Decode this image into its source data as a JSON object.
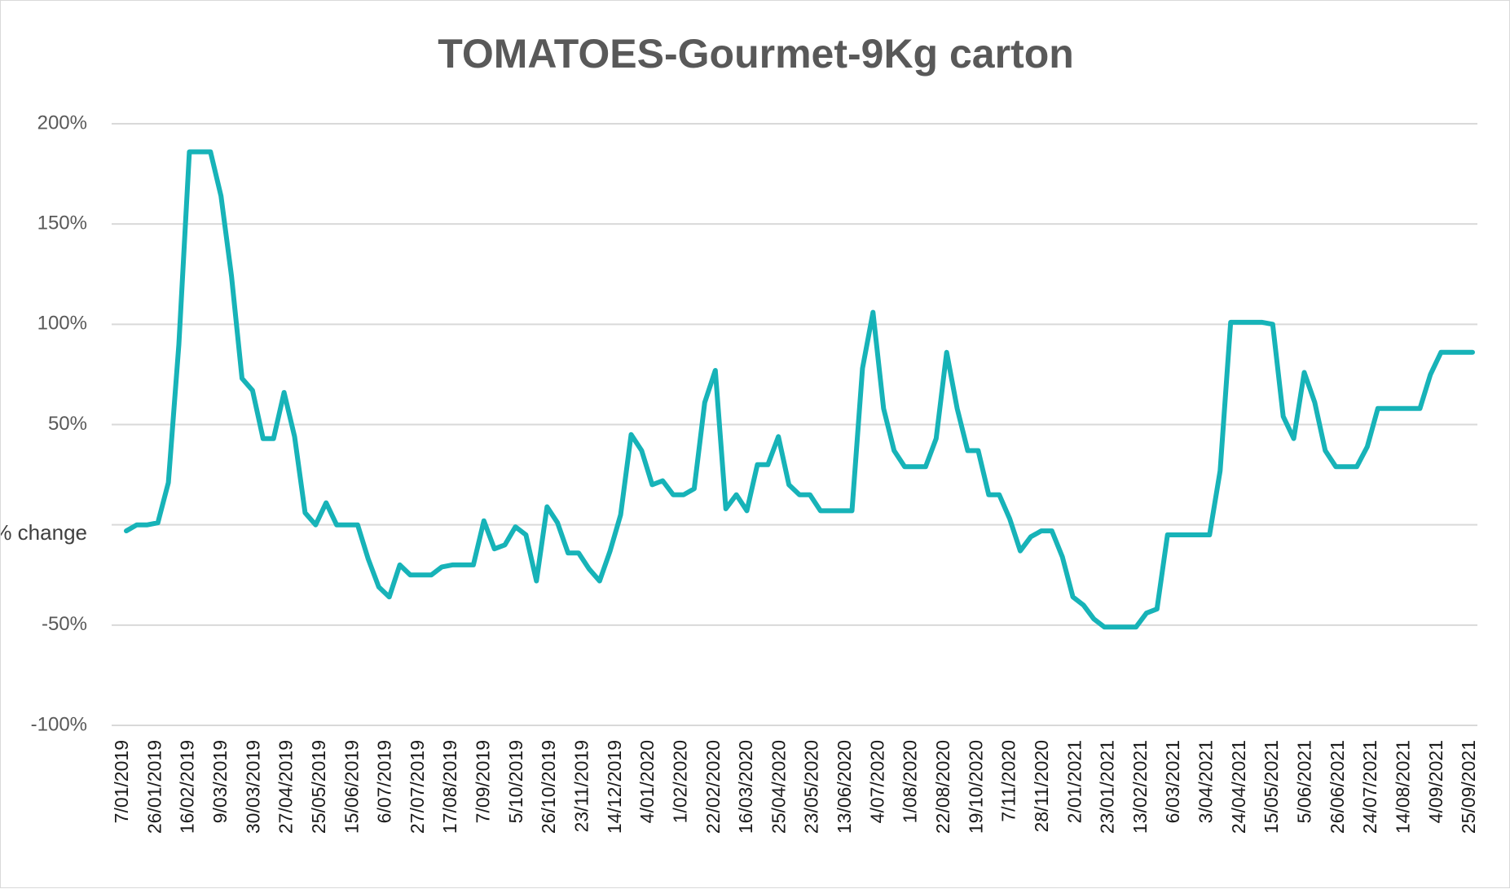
{
  "chart_data": {
    "type": "line",
    "title": "TOMATOES-Gourmet-9Kg carton",
    "ylabel": "% change",
    "xlabel": "",
    "ylim": [
      -100,
      200
    ],
    "yticks": [
      "200%",
      "150%",
      "100%",
      "50%",
      "",
      "-50%",
      "-100%"
    ],
    "ytick_values": [
      200,
      150,
      100,
      50,
      0,
      -50,
      -100
    ],
    "grid": true,
    "legend": "none",
    "line_color": "#17b3b8",
    "x_tick_labels": [
      "7/01/2019",
      "26/01/2019",
      "16/02/2019",
      "9/03/2019",
      "30/03/2019",
      "27/04/2019",
      "25/05/2019",
      "15/06/2019",
      "6/07/2019",
      "27/07/2019",
      "17/08/2019",
      "7/09/2019",
      "5/10/2019",
      "26/10/2019",
      "23/11/2019",
      "14/12/2019",
      "4/01/2020",
      "1/02/2020",
      "22/02/2020",
      "16/03/2020",
      "25/04/2020",
      "23/05/2020",
      "13/06/2020",
      "4/07/2020",
      "1/08/2020",
      "22/08/2020",
      "19/10/2020",
      "7/11/2020",
      "28/11/2020",
      "2/01/2021",
      "23/01/2021",
      "13/02/2021",
      "6/03/2021",
      "3/04/2021",
      "24/04/2021",
      "15/05/2021",
      "5/06/2021",
      "26/06/2021",
      "24/07/2021",
      "14/08/2021",
      "4/09/2021",
      "25/09/2021"
    ],
    "series": [
      {
        "values": [
          -3,
          0,
          0,
          1,
          21,
          90,
          186,
          186,
          186,
          164,
          124,
          73,
          67,
          43,
          43,
          66,
          44,
          6,
          0,
          11,
          0,
          0,
          0,
          -17,
          -31,
          -36,
          -20,
          -25,
          -25,
          -25,
          -21,
          -20,
          -20,
          -20,
          2,
          -12,
          -10,
          -1,
          -5,
          -28,
          9,
          1,
          -14,
          -14,
          -22,
          -28,
          -13,
          5,
          45,
          37,
          20,
          22,
          15,
          15,
          18,
          61,
          77,
          8,
          15,
          7,
          30,
          30,
          44,
          20,
          15,
          15,
          7,
          7,
          7,
          7,
          78,
          106,
          58,
          37,
          29,
          29,
          29,
          43,
          86,
          58,
          37,
          37,
          15,
          15,
          3,
          -13,
          -6,
          -3,
          -3,
          -16,
          -36,
          -40,
          -47,
          -51,
          -51,
          -51,
          -51,
          -44,
          -42,
          -5,
          -5,
          -5,
          -5,
          -5,
          27,
          101,
          101,
          101,
          101,
          100,
          54,
          43,
          76,
          61,
          37,
          29,
          29,
          29,
          39,
          58,
          58,
          58,
          58,
          58,
          75,
          86,
          86,
          86,
          86
        ]
      }
    ]
  }
}
